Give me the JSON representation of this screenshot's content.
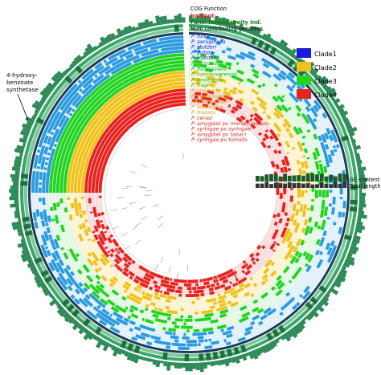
{
  "ring_labels": {
    "cog_function": "COG Function",
    "hotspot": "hotspot",
    "func_homogeneity": "Func. Homogeneity  Ind.",
    "num_contributing": "Num contributing genomes",
    "gc_content": "GC-content",
    "total_length": "Total length"
  },
  "annotation": {
    "line1": "4-hydroxy-",
    "line2": "benzoate",
    "line3": "synthetase"
  },
  "legend": [
    {
      "label": "Clade1",
      "color": "#1a1adb"
    },
    {
      "label": "Clade2",
      "color": "#f2c21a"
    },
    {
      "label": "Clade3",
      "color": "#22d422"
    },
    {
      "label": "Clade4",
      "color": "#e8231f"
    }
  ],
  "genomes": [
    {
      "name": "P. fulva",
      "clade": 1
    },
    {
      "name": "P. aeruginosa",
      "clade": 1
    },
    {
      "name": "P. stutzeri",
      "clade": 1
    },
    {
      "name": "P. putida",
      "clade": 1
    },
    {
      "name": "P. monteilii",
      "clade": 1
    },
    {
      "name": "P. fuscovaginae",
      "clade": 3
    },
    {
      "name": "P. fluorescens",
      "clade": 3
    },
    {
      "name": "P. vancouverensis",
      "clade": 3
    },
    {
      "name": "P. protegens",
      "clade": 3
    },
    {
      "name": "P. fragi",
      "clade": 3
    },
    {
      "name": "P. simiae",
      "clade": 2
    },
    {
      "name": "P. syntxifurmani",
      "clade": 2
    },
    {
      "name": "P. yamanorum",
      "clade": 2
    },
    {
      "name": "P. antarctica",
      "clade": 2
    },
    {
      "name": "P. trivialis",
      "clade": 2
    },
    {
      "name": "P. cerasi",
      "clade": 4
    },
    {
      "name": "P. amygdali pv morsprunorum",
      "clade": 4
    },
    {
      "name": "P. syringae pv syringae",
      "clade": 4
    },
    {
      "name": "P. amygdali pv tabaci",
      "clade": 4
    },
    {
      "name": "P. syringae pv tomato",
      "clade": 4
    }
  ],
  "colors": {
    "clade1_dark": "#2b9be0",
    "clade1_light": "#dff0fb",
    "clade2_dark": "#f2c21a",
    "clade2_light": "#fdf3d0",
    "clade3_dark": "#22d422",
    "clade3_light": "#e2f8e2",
    "clade4_dark": "#e8231f",
    "clade4_light": "#fbdcdc",
    "outer_green": "#2e8b57",
    "hotspot": "#ee2222"
  }
}
